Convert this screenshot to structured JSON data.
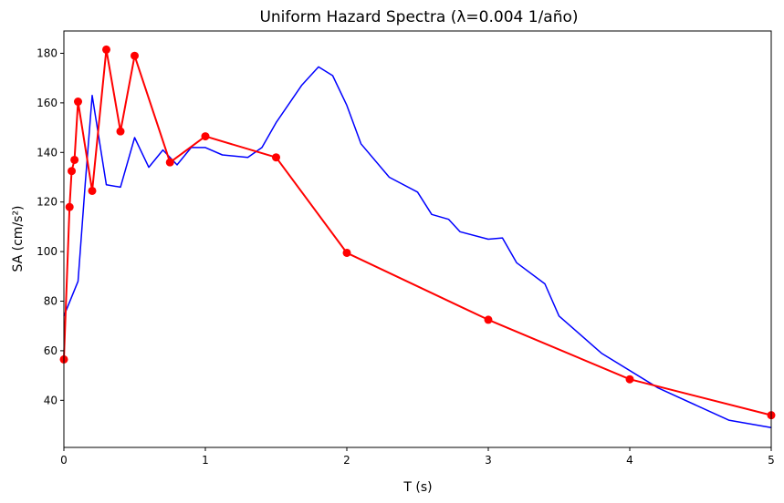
{
  "chart_data": {
    "type": "line",
    "title": "Uniform Hazard Spectra (λ=0.004 1/año)",
    "xlabel": "T (s)",
    "ylabel": "SA (cm/s²)",
    "xlim": [
      0,
      5
    ],
    "ylim": [
      21,
      189
    ],
    "xticks": [
      0,
      1,
      2,
      3,
      4,
      5
    ],
    "yticks": [
      40,
      60,
      80,
      100,
      120,
      140,
      160,
      180
    ],
    "grid": false,
    "legend": "none",
    "series": [
      {
        "color": "#0000ff",
        "marker": "none",
        "x": [
          0,
          0.1,
          0.15,
          0.2,
          0.3,
          0.4,
          0.5,
          0.6,
          0.7,
          0.8,
          0.9,
          1.0,
          1.12,
          1.3,
          1.4,
          1.5,
          1.68,
          1.8,
          1.9,
          2.0,
          2.1,
          2.3,
          2.5,
          2.6,
          2.72,
          2.8,
          3.0,
          3.1,
          3.2,
          3.4,
          3.5,
          3.8,
          4.2,
          4.7,
          5.0
        ],
        "y": [
          74,
          88,
          127,
          163,
          127,
          126,
          146,
          134,
          141,
          135,
          142,
          142,
          139,
          138,
          142,
          152,
          167,
          174.5,
          171,
          159,
          143.5,
          130,
          124,
          115,
          113,
          108,
          105,
          105.5,
          95.5,
          87,
          74,
          59,
          45,
          32,
          29
        ]
      },
      {
        "color": "#ff0000",
        "marker": "circle",
        "x": [
          0,
          0.04,
          0.055,
          0.075,
          0.1,
          0.2,
          0.3,
          0.4,
          0.5,
          0.75,
          1.0,
          1.5,
          2.0,
          3.0,
          4.0,
          5.0
        ],
        "y": [
          56.5,
          118,
          132.5,
          137,
          160.5,
          124.5,
          181.5,
          148.5,
          179,
          136,
          146.5,
          138,
          99.5,
          72.5,
          48.5,
          34
        ]
      }
    ]
  }
}
